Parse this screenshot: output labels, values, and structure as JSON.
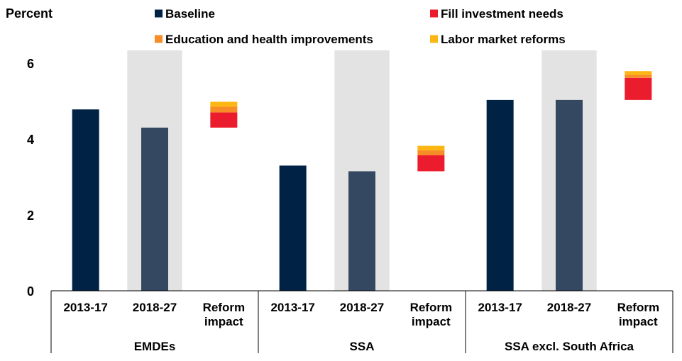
{
  "chart_data": {
    "type": "bar",
    "ylabel": "Percent",
    "ylim": [
      0,
      6
    ],
    "yticks": [
      0,
      2,
      4,
      6
    ],
    "grid": false,
    "legend_position": "top",
    "groups": [
      {
        "name": "EMDEs",
        "categories": [
          {
            "label": [
              "2013-17"
            ],
            "kind": "baseline",
            "value": 4.78,
            "shaded": false
          },
          {
            "label": [
              "2018-27"
            ],
            "kind": "baseline",
            "value": 4.3,
            "shaded": true
          },
          {
            "label": [
              "Reform",
              "impact"
            ],
            "kind": "reform",
            "base": 4.3,
            "increments": {
              "fill": 0.4,
              "education": 0.15,
              "labor": 0.13
            },
            "shaded": false
          }
        ]
      },
      {
        "name": "SSA",
        "categories": [
          {
            "label": [
              "2013-17"
            ],
            "kind": "baseline",
            "value": 3.3,
            "shaded": false
          },
          {
            "label": [
              "2018-27"
            ],
            "kind": "baseline",
            "value": 3.15,
            "shaded": true
          },
          {
            "label": [
              "Reform",
              "impact"
            ],
            "kind": "reform",
            "base": 3.15,
            "increments": {
              "fill": 0.42,
              "education": 0.13,
              "labor": 0.12
            },
            "shaded": false
          }
        ]
      },
      {
        "name": "SSA excl. South Africa",
        "categories": [
          {
            "label": [
              "2013-17"
            ],
            "kind": "baseline",
            "value": 5.03,
            "shaded": false
          },
          {
            "label": [
              "2018-27"
            ],
            "kind": "baseline",
            "value": 5.03,
            "shaded": true
          },
          {
            "label": [
              "Reform",
              "impact"
            ],
            "kind": "reform",
            "base": 5.03,
            "increments": {
              "fill": 0.58,
              "education": 0.08,
              "labor": 0.1
            },
            "shaded": false
          }
        ]
      }
    ],
    "legend": [
      {
        "key": "baseline",
        "label": "Baseline",
        "color": "#002345"
      },
      {
        "key": "fill",
        "label": "Fill investment needs",
        "color": "#eb1c2d"
      },
      {
        "key": "education",
        "label": "Education and health improvements",
        "color": "#f78d28"
      },
      {
        "key": "labor",
        "label": "Labor market reforms",
        "color": "#fdb714"
      }
    ],
    "colors": {
      "baseline_first": "#002345",
      "baseline_second": "#344961",
      "fill": "#eb1c2d",
      "education": "#f78d28",
      "labor": "#fdb714",
      "shade": "#e3e3e3",
      "axis": "#000000"
    }
  }
}
